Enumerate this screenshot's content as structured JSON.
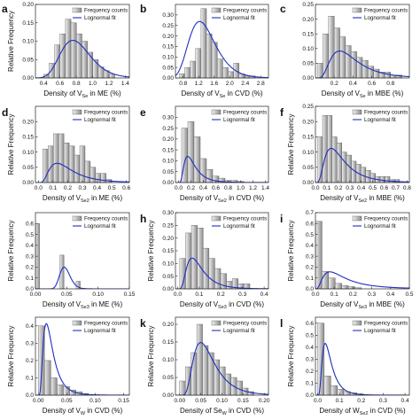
{
  "colors": {
    "bar_fill_light": "#efefef",
    "bar_fill_dark": "#8c8c8c",
    "bar_stroke": "#555555",
    "fit_line": "#1f2fbf",
    "axis": "#222222"
  },
  "chart_data": [
    {
      "id": "a",
      "letter": "a",
      "type": "bar",
      "ylabel": "Relative Frequency",
      "xlabel": {
        "main": "Density of V",
        "sub": "Se",
        "rest": " in ME (%)"
      },
      "legend": [
        "Frequency counts",
        "Lognormal fit"
      ],
      "legend_placement": "top-right",
      "xlim": [
        0.3,
        1.45
      ],
      "ylim": [
        0,
        0.2
      ],
      "xticks": [
        0.4,
        0.6,
        0.8,
        1.0,
        1.2,
        1.4
      ],
      "xtick_labels": [
        "0.4",
        "0.6",
        "0.8",
        "1.0",
        "1.2",
        "1.4"
      ],
      "yticks": [
        0.0,
        0.05,
        0.1,
        0.15,
        0.2
      ],
      "ytick_labels": [
        "0.00",
        "0.05",
        "0.10",
        "0.15",
        "0.20"
      ],
      "bin_start": 0.4,
      "bin_width": 0.067,
      "values": [
        0.01,
        0.04,
        0.09,
        0.12,
        0.16,
        0.15,
        0.12,
        0.1,
        0.07,
        0.05,
        0.03,
        0.02,
        0.01
      ],
      "fit": {
        "mu": -0.22,
        "sigma": 0.24,
        "scale": 0.048
      }
    },
    {
      "id": "b",
      "letter": "b",
      "type": "bar",
      "ylabel": "",
      "xlabel": {
        "main": "Density of V",
        "sub": "Se",
        "rest": " in CVD (%)"
      },
      "legend": [
        "Frequency counts",
        "Lognormal fit"
      ],
      "legend_placement": "top-right",
      "xlim": [
        0.6,
        3.0
      ],
      "ylim": [
        0,
        0.35
      ],
      "xticks": [
        0.8,
        1.2,
        1.6,
        2.0,
        2.4,
        2.8
      ],
      "xtick_labels": [
        "0.8",
        "1.2",
        "1.6",
        "2.0",
        "2.4",
        "2.8"
      ],
      "yticks": [
        0.0,
        0.05,
        0.1,
        0.15,
        0.2,
        0.25,
        0.3
      ],
      "ytick_labels": [
        "0.00",
        "0.05",
        "0.10",
        "0.15",
        "0.20",
        "0.25",
        "0.30"
      ],
      "bin_start": 0.7,
      "bin_width": 0.14,
      "values": [
        0.02,
        0.05,
        0.08,
        0.14,
        0.33,
        0.21,
        0.17,
        0.09,
        0.05,
        0.03,
        0.07,
        0.02,
        0.01,
        0.01
      ],
      "fit": {
        "mu": 0.28,
        "sigma": 0.28,
        "scale": 0.24
      }
    },
    {
      "id": "c",
      "letter": "c",
      "type": "bar",
      "ylabel": "",
      "xlabel": {
        "main": "Density of V",
        "sub": "Se",
        "rest": " in MBE (%)"
      },
      "legend": [
        "Frequency counts",
        "Lognormal fit"
      ],
      "legend_placement": "top-right",
      "xlim": [
        0.0,
        1.0
      ],
      "ylim": [
        0,
        0.25
      ],
      "xticks": [
        0.2,
        0.4,
        0.6,
        0.8
      ],
      "xtick_labels": [
        "0.2",
        "0.4",
        "0.6",
        "0.8"
      ],
      "yticks": [
        0.0,
        0.05,
        0.1,
        0.15,
        0.2,
        0.25
      ],
      "ytick_labels": [
        "0.00",
        "0.05",
        "0.10",
        "0.15",
        "0.20",
        "0.25"
      ],
      "bin_start": 0.02,
      "bin_width": 0.06,
      "values": [
        0.05,
        0.15,
        0.21,
        0.17,
        0.14,
        0.11,
        0.09,
        0.07,
        0.06,
        0.04,
        0.03,
        0.02,
        0.02,
        0.01,
        0.01
      ],
      "fit": {
        "mu": -1.05,
        "sigma": 0.55,
        "scale": 0.038
      }
    },
    {
      "id": "d",
      "letter": "d",
      "type": "bar",
      "ylabel": "Relative Frequency",
      "xlabel": {
        "main": "Density of V",
        "sub": "Se2",
        "rest": " in ME (%)"
      },
      "legend": [
        "Frequency counts",
        "Lognormal fit"
      ],
      "legend_placement": "top-right",
      "xlim": [
        -0.02,
        0.62
      ],
      "ylim": [
        0,
        0.25
      ],
      "xticks": [
        0.0,
        0.1,
        0.2,
        0.3,
        0.4,
        0.5,
        0.6
      ],
      "xtick_labels": [
        "0.0",
        "0.1",
        "0.2",
        "0.3",
        "0.4",
        "0.5",
        "0.6"
      ],
      "yticks": [
        0.0,
        0.05,
        0.1,
        0.15,
        0.2
      ],
      "ytick_labels": [
        "0.00",
        "0.05",
        "0.10",
        "0.15",
        "0.20"
      ],
      "bin_start": 0.03,
      "bin_width": 0.036,
      "values": [
        0.11,
        0.12,
        0.16,
        0.16,
        0.13,
        0.12,
        0.09,
        0.12,
        0.07,
        0.05,
        0.03,
        0.03,
        0.01
      ],
      "fit": {
        "mu": -1.7,
        "sigma": 0.6,
        "scale": 0.0145
      }
    },
    {
      "id": "e",
      "letter": "e",
      "type": "bar",
      "ylabel": "",
      "xlabel": {
        "main": "Density of V",
        "sub": "Se2",
        "rest": " in CVD (%)"
      },
      "legend": [
        "Frequency counts",
        "Lognormal fit"
      ],
      "legend_placement": "top-right",
      "xlim": [
        -0.05,
        1.45
      ],
      "ylim": [
        0,
        0.35
      ],
      "xticks": [
        0.0,
        0.2,
        0.4,
        0.6,
        0.8,
        1.0,
        1.2,
        1.4
      ],
      "xtick_labels": [
        "0.0",
        "0.2",
        "0.4",
        "0.6",
        "0.8",
        "1.0",
        "1.2",
        "1.4"
      ],
      "yticks": [
        0.0,
        0.05,
        0.1,
        0.15,
        0.2,
        0.25,
        0.3
      ],
      "ytick_labels": [
        "0.00",
        "0.05",
        "0.10",
        "0.15",
        "0.20",
        "0.25",
        "0.30"
      ],
      "bin_start": 0.05,
      "bin_width": 0.1,
      "values": [
        0.25,
        0.28,
        0.21,
        0.11,
        0.06,
        0.03,
        0.02,
        0.01,
        0.01,
        0.005
      ],
      "fit": {
        "mu": -1.55,
        "sigma": 0.6,
        "scale": 0.032
      }
    },
    {
      "id": "f",
      "letter": "f",
      "type": "bar",
      "ylabel": "Relative Frequency",
      "xlabel": {
        "main": "Density of V",
        "sub": "Se2",
        "rest": " in MBE (%)"
      },
      "legend": [
        "Frequency counts",
        "Lognormal fit"
      ],
      "legend_placement": "top-right",
      "xlim": [
        0.0,
        0.82
      ],
      "ylim": [
        0,
        0.25
      ],
      "xticks": [
        0.0,
        0.1,
        0.2,
        0.3,
        0.4,
        0.5,
        0.6,
        0.7,
        0.8
      ],
      "xtick_labels": [
        "0.0",
        "0.1",
        "0.2",
        "0.3",
        "0.4",
        "0.5",
        "0.6",
        "0.7",
        "0.8"
      ],
      "yticks": [
        0.0,
        0.05,
        0.1,
        0.15,
        0.2,
        0.25
      ],
      "ytick_labels": [
        "0.00",
        "0.05",
        "0.10",
        "0.15",
        "0.20",
        "0.25"
      ],
      "bin_start": 0.02,
      "bin_width": 0.042,
      "values": [
        0.15,
        0.22,
        0.22,
        0.15,
        0.13,
        0.1,
        0.09,
        0.07,
        0.06,
        0.05,
        0.04,
        0.03,
        0.02,
        0.02,
        0.02,
        0.01,
        0.01
      ],
      "fit": {
        "mu": -1.6,
        "sigma": 0.62,
        "scale": 0.029
      }
    },
    {
      "id": "g",
      "letter": "",
      "type": "bar",
      "ylabel": "Relative Frequency",
      "xlabel": {
        "main": "Density of V",
        "sub": "Se3",
        "rest": " in ME (%)"
      },
      "legend": [
        "Frequency counts",
        "Lognormal fit"
      ],
      "legend_placement": "top-right",
      "xlim": [
        0.0,
        0.15
      ],
      "ylim": [
        0,
        0.7
      ],
      "xticks": [
        0.0,
        0.05,
        0.1,
        0.15
      ],
      "xtick_labels": [
        "0.00",
        "0.05",
        "0.10",
        "0.15"
      ],
      "yticks": [
        0.0,
        0.1,
        0.2,
        0.3,
        0.4,
        0.5,
        0.6
      ],
      "ytick_labels": [
        "0.0",
        "0.1",
        "0.2",
        "0.3",
        "0.4",
        "0.5",
        "0.6"
      ],
      "bin_start": 0.0,
      "bin_width": 0.0065,
      "values": [
        0.6,
        0.0,
        0.0,
        0.0,
        0.0,
        0.0,
        0.31,
        0.0,
        0.0,
        0.0,
        0.07
      ],
      "fit": {
        "mu": -3.05,
        "sigma": 0.18,
        "scale": 0.0042
      }
    },
    {
      "id": "h",
      "letter": "h",
      "type": "bar",
      "ylabel": "Relative Frequency",
      "xlabel": {
        "main": "Density of V",
        "sub": "Se3",
        "rest": " in CVD (%)"
      },
      "legend": [
        "Frequency counts",
        "Lognormal fit"
      ],
      "legend_placement": "top-right",
      "xlim": [
        -0.01,
        0.42
      ],
      "ylim": [
        0,
        0.3
      ],
      "xticks": [
        0.0,
        0.1,
        0.2,
        0.3,
        0.4
      ],
      "xtick_labels": [
        "0.0",
        "0.1",
        "0.2",
        "0.3",
        "0.4"
      ],
      "yticks": [
        0.0,
        0.05,
        0.1,
        0.15,
        0.2,
        0.25,
        0.3
      ],
      "ytick_labels": [
        "0.00",
        "0.05",
        "0.10",
        "0.15",
        "0.20",
        "0.25",
        "0.30"
      ],
      "bin_start": 0.01,
      "bin_width": 0.027,
      "values": [
        0.12,
        0.22,
        0.25,
        0.24,
        0.16,
        0.12,
        0.08,
        0.06,
        0.03,
        0.04,
        0.02,
        0.02
      ],
      "fit": {
        "mu": -2.4,
        "sigma": 0.55,
        "scale": 0.013
      }
    },
    {
      "id": "i",
      "letter": "i",
      "type": "bar",
      "ylabel": "Relative Frequency",
      "xlabel": {
        "main": "Density of V",
        "sub": "Se3",
        "rest": " in MBE (%)"
      },
      "legend": [
        "Frequency counts",
        "Lognormal fit"
      ],
      "legend_placement": "top-right",
      "xlim": [
        0.0,
        0.5
      ],
      "ylim": [
        0,
        0.7
      ],
      "xticks": [
        0.0,
        0.1,
        0.2,
        0.3,
        0.4,
        0.5
      ],
      "xtick_labels": [
        "0.0",
        "0.1",
        "0.2",
        "0.3",
        "0.4",
        "0.5"
      ],
      "yticks": [
        0.0,
        0.1,
        0.2,
        0.3,
        0.4,
        0.5,
        0.6,
        0.7
      ],
      "ytick_labels": [
        "0.0",
        "0.1",
        "0.2",
        "0.3",
        "0.4",
        "0.5",
        "0.6",
        "0.7"
      ],
      "bin_start": 0.0,
      "bin_width": 0.035,
      "values": [
        0.62,
        0.16,
        0.1,
        0.05,
        0.03,
        0.02,
        0.01
      ],
      "fit": {
        "mu": -2.0,
        "sigma": 0.75,
        "scale": 0.03
      }
    },
    {
      "id": "j",
      "letter": "",
      "type": "bar",
      "ylabel": "Relative Frequency",
      "xlabel": {
        "main": "Density of V",
        "sub": "W",
        "rest": " in CVD (%)"
      },
      "legend": [
        "Frequency counts",
        "Lognormal fit"
      ],
      "legend_placement": "top-right",
      "xlim": [
        -0.005,
        0.16
      ],
      "ylim": [
        0,
        0.45
      ],
      "xticks": [
        0.0,
        0.05,
        0.1,
        0.15
      ],
      "xtick_labels": [
        "0.00",
        "0.05",
        "0.10",
        "0.15"
      ],
      "yticks": [
        0.0,
        0.1,
        0.2,
        0.3,
        0.4
      ],
      "ytick_labels": [
        "0.0",
        "0.1",
        "0.2",
        "0.3",
        "0.4"
      ],
      "bin_start": 0.0,
      "bin_width": 0.011,
      "values": [
        0.4,
        0.2,
        0.1,
        0.06,
        0.05,
        0.03,
        0.02,
        0.01
      ],
      "fit": {
        "mu": -3.9,
        "sigma": 0.6,
        "scale": 0.0105
      }
    },
    {
      "id": "k",
      "letter": "k",
      "type": "bar",
      "ylabel": "Relative Frequency",
      "xlabel": {
        "main": "Density of Se",
        "sub": "W",
        "rest": " in CVD (%)"
      },
      "legend": [
        "Frequency counts",
        "Lognormal fit"
      ],
      "legend_placement": "top-right",
      "xlim": [
        -0.01,
        0.21
      ],
      "ylim": [
        0,
        0.22
      ],
      "xticks": [
        0.0,
        0.05,
        0.1,
        0.15,
        0.2
      ],
      "xtick_labels": [
        "0.00",
        "0.05",
        "0.10",
        "0.15",
        "0.20"
      ],
      "yticks": [
        0.0,
        0.05,
        0.1,
        0.15,
        0.2
      ],
      "ytick_labels": [
        "0.00",
        "0.05",
        "0.10",
        "0.15",
        "0.20"
      ],
      "bin_start": 0.0,
      "bin_width": 0.0135,
      "values": [
        0.04,
        0.08,
        0.12,
        0.2,
        0.14,
        0.12,
        0.1,
        0.08,
        0.06,
        0.05,
        0.04,
        0.02,
        0.01
      ],
      "fit": {
        "mu": -2.75,
        "sigma": 0.5,
        "scale": 0.0105
      }
    },
    {
      "id": "l",
      "letter": "l",
      "type": "bar",
      "ylabel": "Relative Frequency",
      "xlabel": {
        "main": "Density of W",
        "sub": "Se2",
        "rest": " in CVD (%)"
      },
      "legend": [
        "Frequency counts",
        "Lognormal fit"
      ],
      "legend_placement": "top-right",
      "xlim": [
        -0.01,
        0.42
      ],
      "ylim": [
        0,
        0.65
      ],
      "xticks": [
        0.0,
        0.1,
        0.2,
        0.3,
        0.4
      ],
      "xtick_labels": [
        "0.0",
        "0.1",
        "0.2",
        "0.3",
        "0.4"
      ],
      "yticks": [
        0.0,
        0.1,
        0.2,
        0.3,
        0.4,
        0.5,
        0.6
      ],
      "ytick_labels": [
        "0.0",
        "0.1",
        "0.2",
        "0.3",
        "0.4",
        "0.5",
        "0.6"
      ],
      "bin_start": 0.0,
      "bin_width": 0.03,
      "values": [
        0.6,
        0.16,
        0.08,
        0.05,
        0.03,
        0.02,
        0.01
      ],
      "fit": {
        "mu": -3.0,
        "sigma": 0.6,
        "scale": 0.027
      }
    }
  ]
}
